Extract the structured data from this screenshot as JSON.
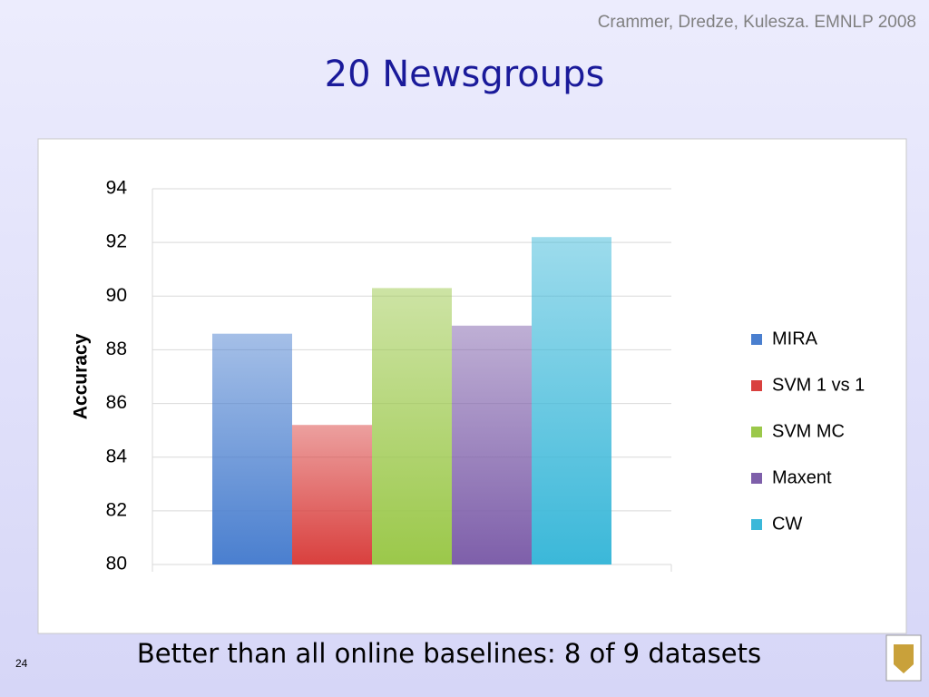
{
  "header": "Crammer, Dredze, Kulesza. EMNLP 2008",
  "caption": "Better than all online baselines: 8 of 9 datasets",
  "page_number": "24",
  "chart_data": {
    "type": "bar",
    "title": "20 Newsgroups",
    "y_label": "Accuracy",
    "series": [
      {
        "name": "MIRA",
        "color": "#4a7fcf",
        "values": [
          88.6
        ]
      },
      {
        "name": "SVM 1 vs 1",
        "color": "#d9403e",
        "values": [
          85.2
        ]
      },
      {
        "name": "SVM MC",
        "color": "#9bc84a",
        "values": [
          90.3
        ]
      },
      {
        "name": "Maxent",
        "color": "#7e5faa",
        "values": [
          88.9
        ]
      },
      {
        "name": "CW",
        "color": "#3bb8d9",
        "values": [
          92.2
        ]
      }
    ],
    "ylim": [
      80,
      94
    ],
    "yticks": [
      80,
      82,
      84,
      86,
      88,
      90,
      92,
      94
    ],
    "grid": true,
    "legend": "right"
  }
}
